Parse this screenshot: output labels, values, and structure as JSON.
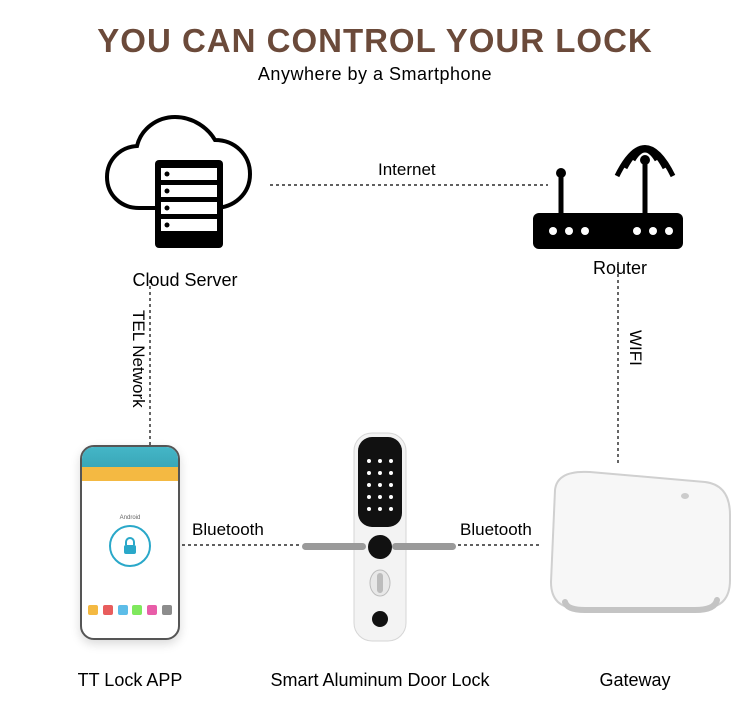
{
  "title": {
    "text": "YOU CAN CONTROL YOUR LOCK",
    "color": "#6b4a3a"
  },
  "subtitle": "Anywhere by a Smartphone",
  "nodes": {
    "cloud_server": {
      "label": "Cloud Server"
    },
    "router": {
      "label": "Router"
    },
    "phone": {
      "label": "TT Lock APP"
    },
    "door_lock": {
      "label": "Smart Aluminum Door Lock"
    },
    "gateway": {
      "label": "Gateway"
    }
  },
  "edges": {
    "internet": {
      "label": "Internet"
    },
    "tel_network": {
      "label": "TEL Network"
    },
    "wifi": {
      "label": "WIFI"
    },
    "bt_left": {
      "label": "Bluetooth"
    },
    "bt_right": {
      "label": "Bluetooth"
    }
  },
  "phone_icons": [
    "#f4b942",
    "#e85d5d",
    "#5dbde8",
    "#7fe85d",
    "#e85da8",
    "#8c8c8c"
  ],
  "colors": {
    "ink": "#000000",
    "phone_accent": "#2aa8c9",
    "gateway_body": "#f7f7f7",
    "gateway_shadow": "#d8d8d8"
  }
}
